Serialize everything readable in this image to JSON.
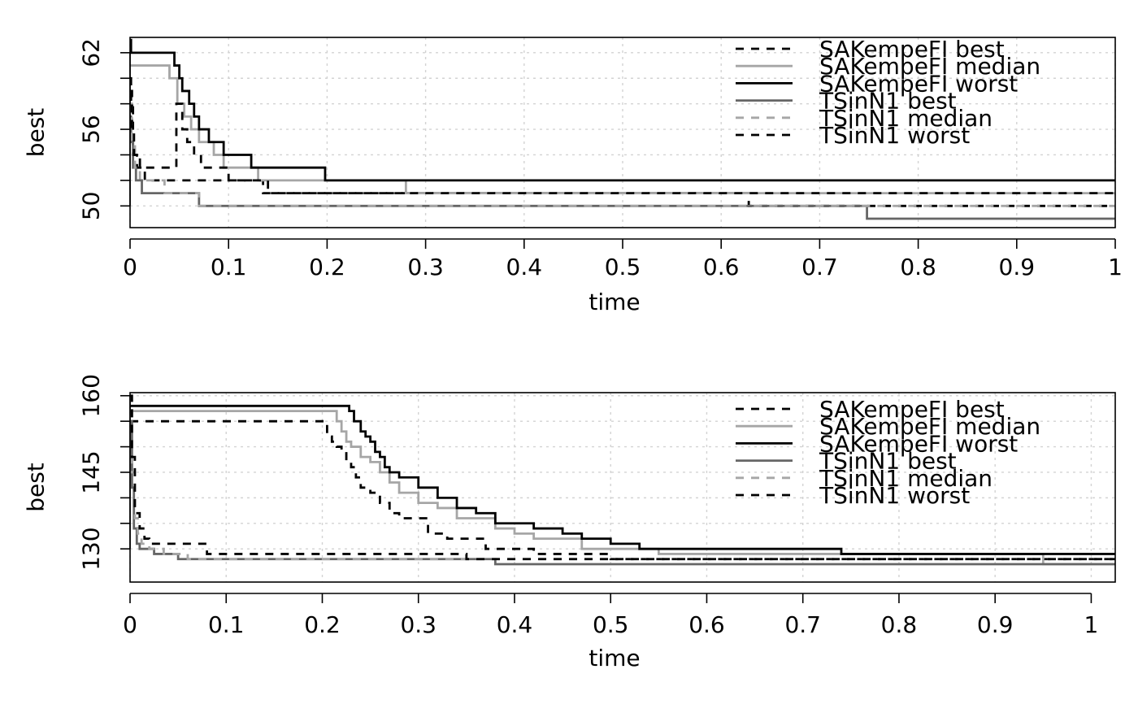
{
  "chart_data": [
    {
      "type": "line",
      "step": true,
      "xlabel": "time",
      "ylabel": "best",
      "xlim": [
        0,
        1
      ],
      "ylim": [
        48.3,
        63.2
      ],
      "x_ticks": [
        0,
        0.1,
        0.2,
        0.3,
        0.4,
        0.5,
        0.6,
        0.7,
        0.8,
        0.9,
        1
      ],
      "x_tick_labels": [
        "0",
        "0.1",
        "0.2",
        "0.3",
        "0.4",
        "0.5",
        "0.6",
        "0.7",
        "0.8",
        "0.9",
        "1"
      ],
      "y_ticks": [
        50,
        52,
        54,
        56,
        58,
        60,
        62
      ],
      "y_tick_labels": [
        "50",
        "",
        "",
        "56",
        "",
        "",
        "62"
      ],
      "grid": true,
      "legend_position": "top-right",
      "series": [
        {
          "name": "SAKempeFI best",
          "color": "#000000",
          "dash": "dashed",
          "x": [
            0,
            0.001,
            0.003,
            0.007,
            0.015,
            0.049,
            0.1,
            0.135,
            0.625,
            0.628,
            1
          ],
          "y": [
            60,
            58,
            54,
            53,
            52,
            52,
            52,
            51,
            51,
            50,
            50
          ]
        },
        {
          "name": "SAKempeFI median",
          "color": "#a6a6a6",
          "dash": "solid",
          "x": [
            0,
            0.04,
            0.048,
            0.055,
            0.062,
            0.07,
            0.085,
            0.095,
            0.13,
            0.2,
            0.28,
            1
          ],
          "y": [
            61,
            60,
            58,
            57,
            56,
            55,
            54,
            53,
            52,
            52,
            51,
            51
          ]
        },
        {
          "name": "SAKempeFI worst",
          "color": "#000000",
          "dash": "solid",
          "x": [
            0,
            0.001,
            0.045,
            0.05,
            0.053,
            0.06,
            0.065,
            0.07,
            0.08,
            0.095,
            0.123,
            0.198,
            1
          ],
          "y": [
            63,
            62,
            61,
            60,
            59,
            58,
            57,
            56,
            55,
            54,
            53,
            52,
            52
          ]
        },
        {
          "name": "TSinN1 best",
          "color": "#666666",
          "dash": "solid",
          "x": [
            0,
            0.001,
            0.003,
            0.006,
            0.012,
            0.025,
            0.07,
            0.748,
            1
          ],
          "y": [
            57,
            55,
            53,
            52,
            51,
            51,
            50,
            49,
            49
          ]
        },
        {
          "name": "TSinN1 median",
          "color": "#a6a6a6",
          "dash": "dashed",
          "x": [
            0,
            0.002,
            0.005,
            0.01,
            0.035,
            0.07,
            0.2,
            0.62,
            1
          ],
          "y": [
            58,
            55,
            53,
            52,
            51,
            50,
            50,
            50,
            50
          ]
        },
        {
          "name": "TSinN1 worst",
          "color": "#000000",
          "dash": "dashed",
          "x": [
            0,
            0.002,
            0.004,
            0.01,
            0.04,
            0.047,
            0.053,
            0.058,
            0.065,
            0.072,
            0.1,
            0.14,
            0.63,
            1
          ],
          "y": [
            59,
            56,
            54,
            53,
            53,
            58,
            56,
            55,
            54,
            53,
            52,
            51,
            51,
            51
          ]
        }
      ]
    },
    {
      "type": "line",
      "step": true,
      "xlabel": "time",
      "ylabel": "best",
      "xlim": [
        0,
        1.025
      ],
      "ylim": [
        123.5,
        160.6
      ],
      "x_ticks": [
        0,
        0.1,
        0.2,
        0.3,
        0.4,
        0.5,
        0.6,
        0.7,
        0.8,
        0.9,
        1
      ],
      "x_tick_labels": [
        "0",
        "0.1",
        "0.2",
        "0.3",
        "0.4",
        "0.5",
        "0.6",
        "0.7",
        "0.8",
        "0.9",
        "1"
      ],
      "y_ticks": [
        130,
        135,
        140,
        145,
        150,
        155,
        160
      ],
      "y_tick_labels": [
        "130",
        "",
        "",
        "145",
        "",
        "",
        "160"
      ],
      "grid": true,
      "legend_position": "top-right",
      "series": [
        {
          "name": "SAKempeFI best",
          "color": "#000000",
          "dash": "dashed",
          "x": [
            0,
            0.2,
            0.205,
            0.21,
            0.215,
            0.22,
            0.225,
            0.23,
            0.235,
            0.24,
            0.25,
            0.26,
            0.27,
            0.28,
            0.31,
            0.33,
            0.37,
            0.42,
            0.5,
            0.6,
            1.025
          ],
          "y": [
            155,
            155,
            152,
            151,
            150,
            149,
            147,
            146,
            144,
            142,
            141,
            139,
            137,
            136,
            133,
            132,
            130,
            129,
            128,
            128,
            128
          ]
        },
        {
          "name": "SAKempeFI median",
          "color": "#a6a6a6",
          "dash": "solid",
          "x": [
            0,
            0.21,
            0.215,
            0.22,
            0.225,
            0.23,
            0.24,
            0.25,
            0.26,
            0.27,
            0.28,
            0.3,
            0.32,
            0.34,
            0.38,
            0.4,
            0.42,
            0.47,
            0.55,
            0.9,
            0.95,
            1.025
          ],
          "y": [
            157,
            157,
            155,
            153,
            151,
            150,
            148,
            147,
            145,
            143,
            141,
            139,
            138,
            136,
            134,
            133,
            132,
            130,
            129,
            129,
            127,
            127
          ]
        },
        {
          "name": "SAKempeFI worst",
          "color": "#000000",
          "dash": "solid",
          "x": [
            0,
            0.223,
            0.228,
            0.233,
            0.24,
            0.245,
            0.25,
            0.255,
            0.26,
            0.265,
            0.27,
            0.28,
            0.3,
            0.32,
            0.34,
            0.36,
            0.38,
            0.42,
            0.45,
            0.47,
            0.5,
            0.53,
            0.6,
            0.74,
            1.025
          ],
          "y": [
            158,
            158,
            157,
            155,
            153,
            152,
            151,
            149,
            148,
            146,
            145,
            144,
            142,
            140,
            138,
            137,
            135,
            134,
            133,
            132,
            131,
            130,
            130,
            129,
            129
          ]
        },
        {
          "name": "TSinN1 best",
          "color": "#666666",
          "dash": "solid",
          "x": [
            0,
            0.002,
            0.004,
            0.007,
            0.01,
            0.015,
            0.025,
            0.05,
            0.38,
            1.025
          ],
          "y": [
            155,
            142,
            134,
            131,
            130,
            130,
            129,
            128,
            127,
            127
          ]
        },
        {
          "name": "TSinN1 median",
          "color": "#a6a6a6",
          "dash": "dashed",
          "x": [
            0,
            0.002,
            0.005,
            0.008,
            0.012,
            0.02,
            0.035,
            0.06,
            0.4,
            1.025
          ],
          "y": [
            157,
            145,
            136,
            133,
            131,
            130,
            129,
            128,
            128,
            128
          ]
        },
        {
          "name": "TSinN1 worst",
          "color": "#000000",
          "dash": "dashed",
          "x": [
            0,
            0.002,
            0.005,
            0.01,
            0.015,
            0.02,
            0.03,
            0.08,
            0.35,
            1.025
          ],
          "y": [
            160,
            148,
            137,
            134,
            132,
            131,
            131,
            129,
            128,
            128
          ]
        }
      ]
    }
  ]
}
